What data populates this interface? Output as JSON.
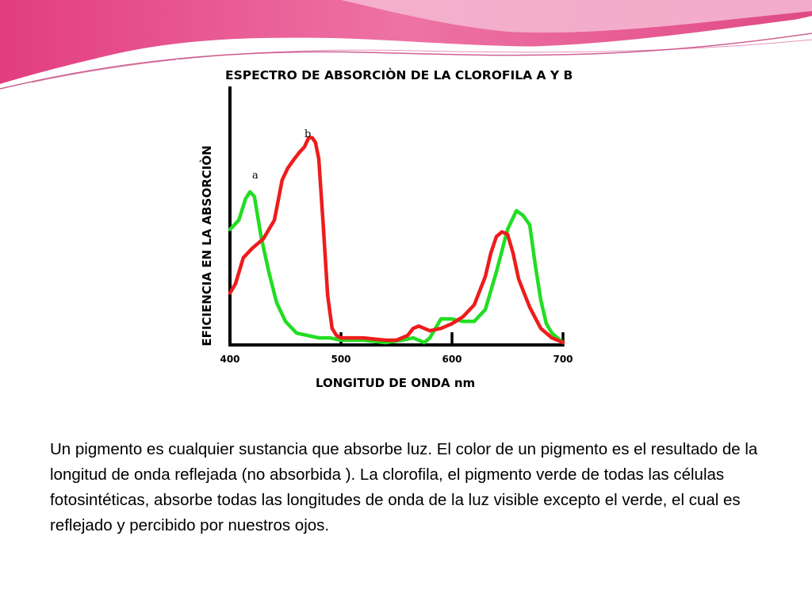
{
  "colors": {
    "header_pink": "#e8508c",
    "header_light": "#f2aec9",
    "curve_a": "#22dd22",
    "curve_b": "#ee1c1c"
  },
  "chart_data": {
    "type": "line",
    "title": "ESPECTRO DE ABSORCIÒN DE LA CLOROFILA  A  Y  B",
    "xlabel": "LONGITUD DE ONDA  nm",
    "ylabel": "EFICIENCIA EN LA ABSORCIÒN",
    "xlim": [
      400,
      700
    ],
    "ylim": [
      0,
      100
    ],
    "x_ticks": [
      400,
      500,
      600,
      700
    ],
    "y_ticks": [],
    "grid": false,
    "series": [
      {
        "name": "a",
        "x": [
          400,
          408,
          414,
          418,
          422,
          428,
          435,
          442,
          450,
          460,
          470,
          480,
          490,
          500,
          520,
          540,
          555,
          565,
          575,
          580,
          590,
          600,
          610,
          620,
          630,
          640,
          650,
          658,
          664,
          670,
          675,
          680,
          685,
          690,
          695,
          700
        ],
        "y": [
          48,
          52,
          61,
          64,
          62,
          45,
          30,
          17,
          9,
          4,
          3,
          2,
          2,
          1,
          1,
          0,
          1,
          2,
          0,
          2,
          10,
          10,
          9,
          9,
          14,
          30,
          48,
          56,
          54,
          50,
          33,
          18,
          8,
          4,
          2,
          0
        ]
      },
      {
        "name": "b",
        "x": [
          400,
          405,
          412,
          420,
          430,
          440,
          447,
          452,
          458,
          463,
          467,
          471,
          474,
          477,
          480,
          484,
          488,
          492,
          496,
          500,
          520,
          540,
          550,
          560,
          565,
          570,
          580,
          590,
          600,
          610,
          620,
          630,
          635,
          640,
          645,
          650,
          655,
          660,
          670,
          680,
          690,
          700
        ],
        "y": [
          21,
          25,
          36,
          40,
          44,
          52,
          69,
          74,
          78,
          81,
          83,
          87,
          87,
          85,
          78,
          50,
          20,
          6,
          3,
          2,
          2,
          1,
          1,
          3,
          6,
          7,
          5,
          6,
          8,
          11,
          16,
          28,
          38,
          45,
          47,
          46,
          38,
          27,
          15,
          6,
          2,
          0
        ]
      }
    ],
    "annotations": [
      "a",
      "b"
    ]
  },
  "caption": "Un pigmento es cualquier sustancia que absorbe luz. El color de un pigmento es el resultado de la longitud de onda reflejada (no absorbida ). La clorofila, el pigmento verde de todas las células fotosintéticas, absorbe todas las longitudes de onda de la luz visible excepto el verde, el cual es reflejado y percibido por nuestros ojos."
}
